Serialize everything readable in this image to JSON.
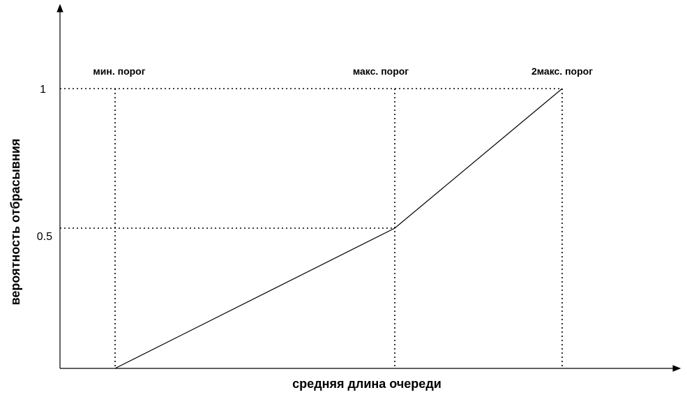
{
  "diagram": {
    "x_axis_label": "средняя длина очереди",
    "y_axis_label": "вероятность отбрасывния",
    "y_ticks": {
      "one": "1",
      "half": "0.5"
    },
    "thresholds": {
      "min": "мин. порог",
      "max": "макс. порог",
      "double_max": "2макс. порог"
    },
    "probability_points": [
      0,
      0.5,
      1
    ]
  }
}
